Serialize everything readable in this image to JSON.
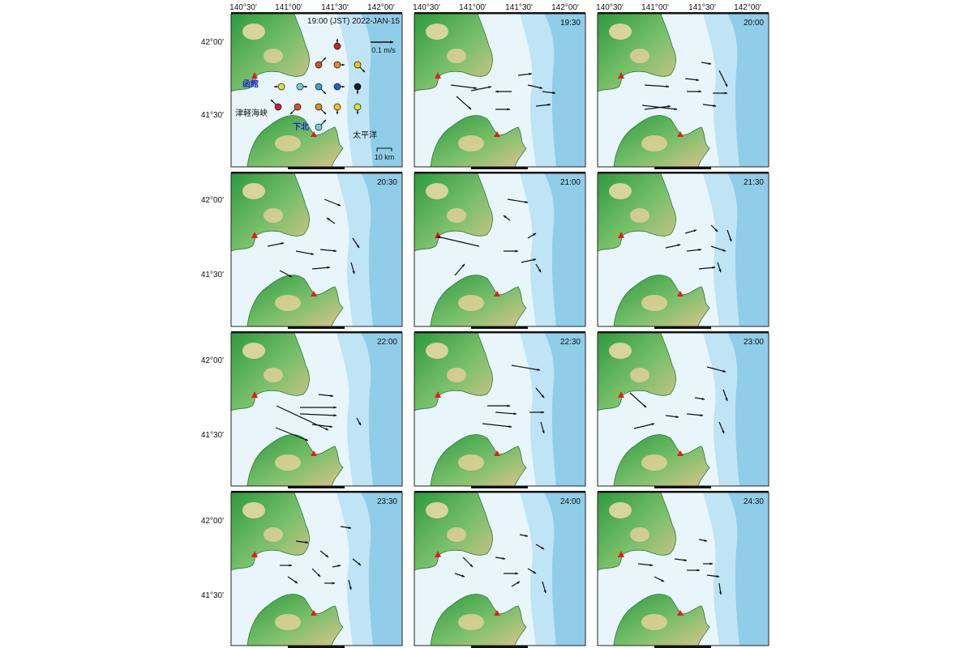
{
  "figure": {
    "top_lon_labels": [
      "140°30'",
      "141°00'",
      "141°30'",
      "142°00'"
    ],
    "lat_labels": [
      "42°00'",
      "41°30'"
    ],
    "panels": [
      {
        "time": "19:00 (JST) 2022-JAN-15",
        "first": true
      },
      {
        "time": "19:30"
      },
      {
        "time": "20:00"
      },
      {
        "time": "20:30"
      },
      {
        "time": "21:00"
      },
      {
        "time": "21:30"
      },
      {
        "time": "22:00"
      },
      {
        "time": "22:30"
      },
      {
        "time": "23:00"
      },
      {
        "time": "23:30"
      },
      {
        "time": "24:00"
      },
      {
        "time": "24:30"
      }
    ],
    "first_panel": {
      "place_hakodate": "函館",
      "place_shimokita": "下北",
      "place_strait": "津軽海峡",
      "place_pacific": "太平洋",
      "scale_speed": "0.1 m/s",
      "scale_distance": "10 km",
      "station_colors": [
        "#c8261e",
        "#d0532a",
        "#e08a1c",
        "#f0c419",
        "#d8e23a",
        "#6ed3cf",
        "#3c9fd8",
        "#2e5fb8",
        "#1b1b1b"
      ]
    }
  }
}
